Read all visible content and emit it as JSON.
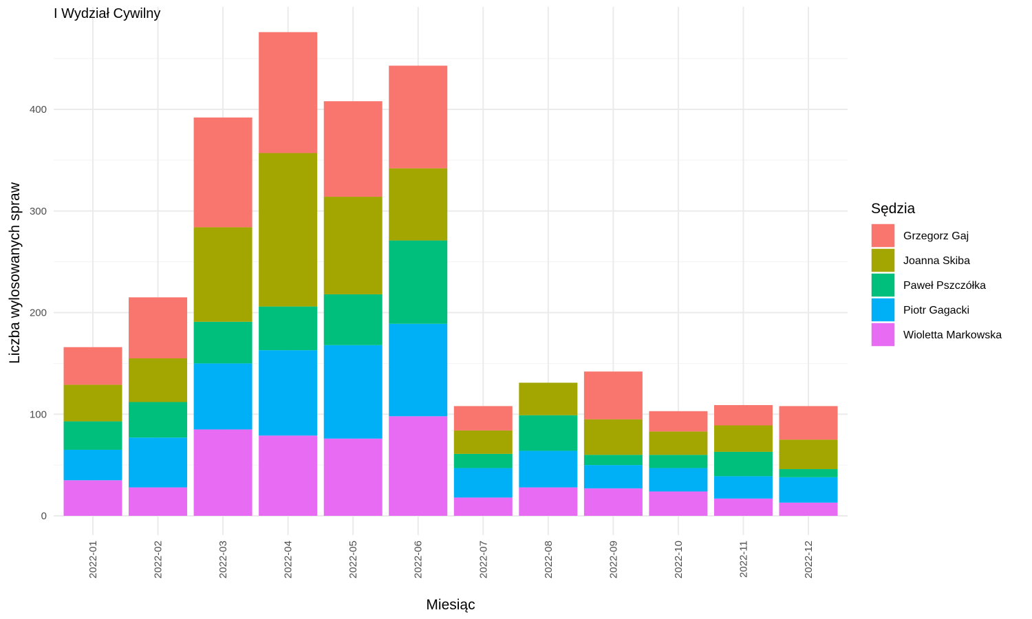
{
  "chart_data": {
    "type": "bar",
    "stacked": true,
    "title": "I Wydział Cywilny",
    "xlabel": "Miesiąc",
    "ylabel": "Liczba wylosowanych spraw",
    "ylim": [
      0,
      475
    ],
    "yticks": [
      0,
      100,
      200,
      300,
      400
    ],
    "grid": true,
    "legend": {
      "title": "Sędzia",
      "placement": "right"
    },
    "categories": [
      "2022-01",
      "2022-02",
      "2022-03",
      "2022-04",
      "2022-05",
      "2022-06",
      "2022-07",
      "2022-08",
      "2022-09",
      "2022-10",
      "2022-11",
      "2022-12"
    ],
    "series": [
      {
        "name": "Wioletta Markowska",
        "color": "#E76BF3",
        "values": [
          35,
          28,
          85,
          79,
          76,
          98,
          18,
          28,
          27,
          24,
          17,
          13
        ]
      },
      {
        "name": "Piotr Gagacki",
        "color": "#00B0F6",
        "values": [
          30,
          49,
          65,
          84,
          92,
          91,
          29,
          36,
          23,
          23,
          22,
          25
        ]
      },
      {
        "name": "Paweł Pszczółka",
        "color": "#00BF7D",
        "values": [
          28,
          35,
          41,
          43,
          50,
          82,
          14,
          35,
          10,
          13,
          24,
          8
        ]
      },
      {
        "name": "Joanna Skiba",
        "color": "#A3A500",
        "values": [
          36,
          43,
          93,
          151,
          96,
          71,
          23,
          32,
          35,
          23,
          26,
          29
        ]
      },
      {
        "name": "Grzegorz Gaj",
        "color": "#F8766D",
        "values": [
          37,
          60,
          108,
          119,
          94,
          101,
          24,
          0,
          47,
          20,
          20,
          33
        ]
      }
    ],
    "legend_order": [
      "Grzegorz Gaj",
      "Joanna Skiba",
      "Paweł Pszczółka",
      "Piotr Gagacki",
      "Wioletta Markowska"
    ]
  }
}
